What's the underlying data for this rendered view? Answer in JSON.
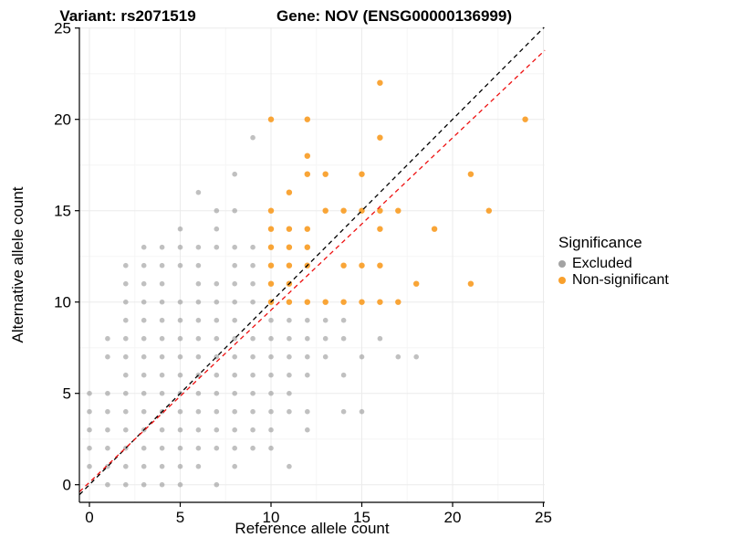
{
  "chart_data": {
    "type": "scatter",
    "title_left": "Variant: rs2071519",
    "title_right": "Gene: NOV (ENSG00000136999)",
    "xlabel": "Reference allele count",
    "ylabel": "Alternative allele count",
    "xlim": [
      -0.55,
      25.08
    ],
    "ylim": [
      -0.97,
      25.04
    ],
    "x_ticks": [
      0,
      5,
      10,
      15,
      20,
      25
    ],
    "y_ticks": [
      0,
      5,
      10,
      15,
      20,
      25
    ],
    "grid": {
      "major_color": "#ebebeb",
      "minor_color": "#f5f5f5",
      "minor_step": 2.5
    },
    "legend": {
      "title": "Significance",
      "position": "right",
      "items": [
        {
          "label": "Excluded",
          "color": "#a3a3a3"
        },
        {
          "label": "Non-significant",
          "color": "#f9a02c"
        }
      ]
    },
    "series": [
      {
        "name": "Excluded",
        "color": "#9a9a9a",
        "opacity": 0.62,
        "radius": 2.8,
        "points": [
          [
            1,
            0
          ],
          [
            2,
            0
          ],
          [
            3,
            0
          ],
          [
            4,
            0
          ],
          [
            5,
            0
          ],
          [
            7,
            0
          ],
          [
            0,
            1
          ],
          [
            1,
            1
          ],
          [
            2,
            1
          ],
          [
            3,
            1
          ],
          [
            4,
            1
          ],
          [
            5,
            1
          ],
          [
            6,
            1
          ],
          [
            8,
            1
          ],
          [
            11,
            1
          ],
          [
            0,
            2
          ],
          [
            1,
            2
          ],
          [
            2,
            2
          ],
          [
            3,
            2
          ],
          [
            4,
            2
          ],
          [
            5,
            2
          ],
          [
            6,
            2
          ],
          [
            7,
            2
          ],
          [
            8,
            2
          ],
          [
            9,
            2
          ],
          [
            10,
            2
          ],
          [
            0,
            3
          ],
          [
            1,
            3
          ],
          [
            2,
            3
          ],
          [
            3,
            3
          ],
          [
            4,
            3
          ],
          [
            5,
            3
          ],
          [
            6,
            3
          ],
          [
            7,
            3
          ],
          [
            8,
            3
          ],
          [
            9,
            3
          ],
          [
            10,
            3
          ],
          [
            12,
            3
          ],
          [
            0,
            4
          ],
          [
            1,
            4
          ],
          [
            2,
            4
          ],
          [
            3,
            4
          ],
          [
            4,
            4
          ],
          [
            5,
            4
          ],
          [
            6,
            4
          ],
          [
            7,
            4
          ],
          [
            8,
            4
          ],
          [
            9,
            4
          ],
          [
            10,
            4
          ],
          [
            11,
            4
          ],
          [
            12,
            4
          ],
          [
            14,
            4
          ],
          [
            15,
            4
          ],
          [
            0,
            5
          ],
          [
            1,
            5
          ],
          [
            2,
            5
          ],
          [
            3,
            5
          ],
          [
            4,
            5
          ],
          [
            5,
            5
          ],
          [
            6,
            5
          ],
          [
            7,
            5
          ],
          [
            8,
            5
          ],
          [
            9,
            5
          ],
          [
            10,
            5
          ],
          [
            11,
            5
          ],
          [
            2,
            6
          ],
          [
            3,
            6
          ],
          [
            4,
            6
          ],
          [
            5,
            6
          ],
          [
            6,
            6
          ],
          [
            7,
            6
          ],
          [
            8,
            6
          ],
          [
            9,
            6
          ],
          [
            10,
            6
          ],
          [
            11,
            6
          ],
          [
            12,
            6
          ],
          [
            14,
            6
          ],
          [
            1,
            7
          ],
          [
            2,
            7
          ],
          [
            3,
            7
          ],
          [
            4,
            7
          ],
          [
            5,
            7
          ],
          [
            6,
            7
          ],
          [
            7,
            7
          ],
          [
            8,
            7
          ],
          [
            9,
            7
          ],
          [
            10,
            7
          ],
          [
            11,
            7
          ],
          [
            12,
            7
          ],
          [
            13,
            7
          ],
          [
            15,
            7
          ],
          [
            17,
            7
          ],
          [
            18,
            7
          ],
          [
            1,
            8
          ],
          [
            2,
            8
          ],
          [
            3,
            8
          ],
          [
            4,
            8
          ],
          [
            5,
            8
          ],
          [
            6,
            8
          ],
          [
            7,
            8
          ],
          [
            8,
            8
          ],
          [
            9,
            8
          ],
          [
            10,
            8
          ],
          [
            11,
            8
          ],
          [
            12,
            8
          ],
          [
            13,
            8
          ],
          [
            14,
            8
          ],
          [
            16,
            8
          ],
          [
            2,
            9
          ],
          [
            3,
            9
          ],
          [
            4,
            9
          ],
          [
            5,
            9
          ],
          [
            6,
            9
          ],
          [
            7,
            9
          ],
          [
            8,
            9
          ],
          [
            10,
            9
          ],
          [
            11,
            9
          ],
          [
            12,
            9
          ],
          [
            13,
            9
          ],
          [
            14,
            9
          ],
          [
            2,
            10
          ],
          [
            3,
            10
          ],
          [
            4,
            10
          ],
          [
            5,
            10
          ],
          [
            6,
            10
          ],
          [
            7,
            10
          ],
          [
            8,
            10
          ],
          [
            9,
            10
          ],
          [
            2,
            11
          ],
          [
            3,
            11
          ],
          [
            4,
            11
          ],
          [
            6,
            11
          ],
          [
            7,
            11
          ],
          [
            8,
            11
          ],
          [
            9,
            11
          ],
          [
            2,
            12
          ],
          [
            3,
            12
          ],
          [
            4,
            12
          ],
          [
            5,
            12
          ],
          [
            6,
            12
          ],
          [
            8,
            12
          ],
          [
            9,
            12
          ],
          [
            3,
            13
          ],
          [
            4,
            13
          ],
          [
            5,
            13
          ],
          [
            6,
            13
          ],
          [
            7,
            13
          ],
          [
            8,
            13
          ],
          [
            9,
            13
          ],
          [
            5,
            14
          ],
          [
            7,
            14
          ],
          [
            7,
            15
          ],
          [
            8,
            15
          ],
          [
            6,
            16
          ],
          [
            8,
            17
          ],
          [
            9,
            19
          ]
        ]
      },
      {
        "name": "Non-significant",
        "color": "#f9a02c",
        "opacity": 0.95,
        "radius": 3.2,
        "points": [
          [
            10,
            10
          ],
          [
            11,
            10
          ],
          [
            12,
            10
          ],
          [
            13,
            10
          ],
          [
            14,
            10
          ],
          [
            15,
            10
          ],
          [
            16,
            10
          ],
          [
            17,
            10
          ],
          [
            10,
            11
          ],
          [
            11,
            11
          ],
          [
            18,
            11
          ],
          [
            21,
            11
          ],
          [
            10,
            12
          ],
          [
            11,
            12
          ],
          [
            12,
            12
          ],
          [
            14,
            12
          ],
          [
            15,
            12
          ],
          [
            16,
            12
          ],
          [
            10,
            13
          ],
          [
            11,
            13
          ],
          [
            12,
            13
          ],
          [
            10,
            14
          ],
          [
            11,
            14
          ],
          [
            12,
            14
          ],
          [
            16,
            14
          ],
          [
            19,
            14
          ],
          [
            10,
            15
          ],
          [
            13,
            15
          ],
          [
            14,
            15
          ],
          [
            15,
            15
          ],
          [
            16,
            15
          ],
          [
            17,
            15
          ],
          [
            22,
            15
          ],
          [
            11,
            16
          ],
          [
            12,
            17
          ],
          [
            13,
            17
          ],
          [
            15,
            17
          ],
          [
            21,
            17
          ],
          [
            12,
            18
          ],
          [
            16,
            19
          ],
          [
            10,
            20
          ],
          [
            12,
            20
          ],
          [
            24,
            20
          ],
          [
            16,
            22
          ]
        ]
      }
    ],
    "lines": [
      {
        "name": "identity-line",
        "slope": 1.0,
        "intercept": 0.0,
        "color": "#000000",
        "dash": "5 4"
      },
      {
        "name": "ratio-line",
        "slope": 0.943,
        "intercept": 0.13,
        "color": "#ee1111",
        "dash": "5 4"
      }
    ]
  }
}
